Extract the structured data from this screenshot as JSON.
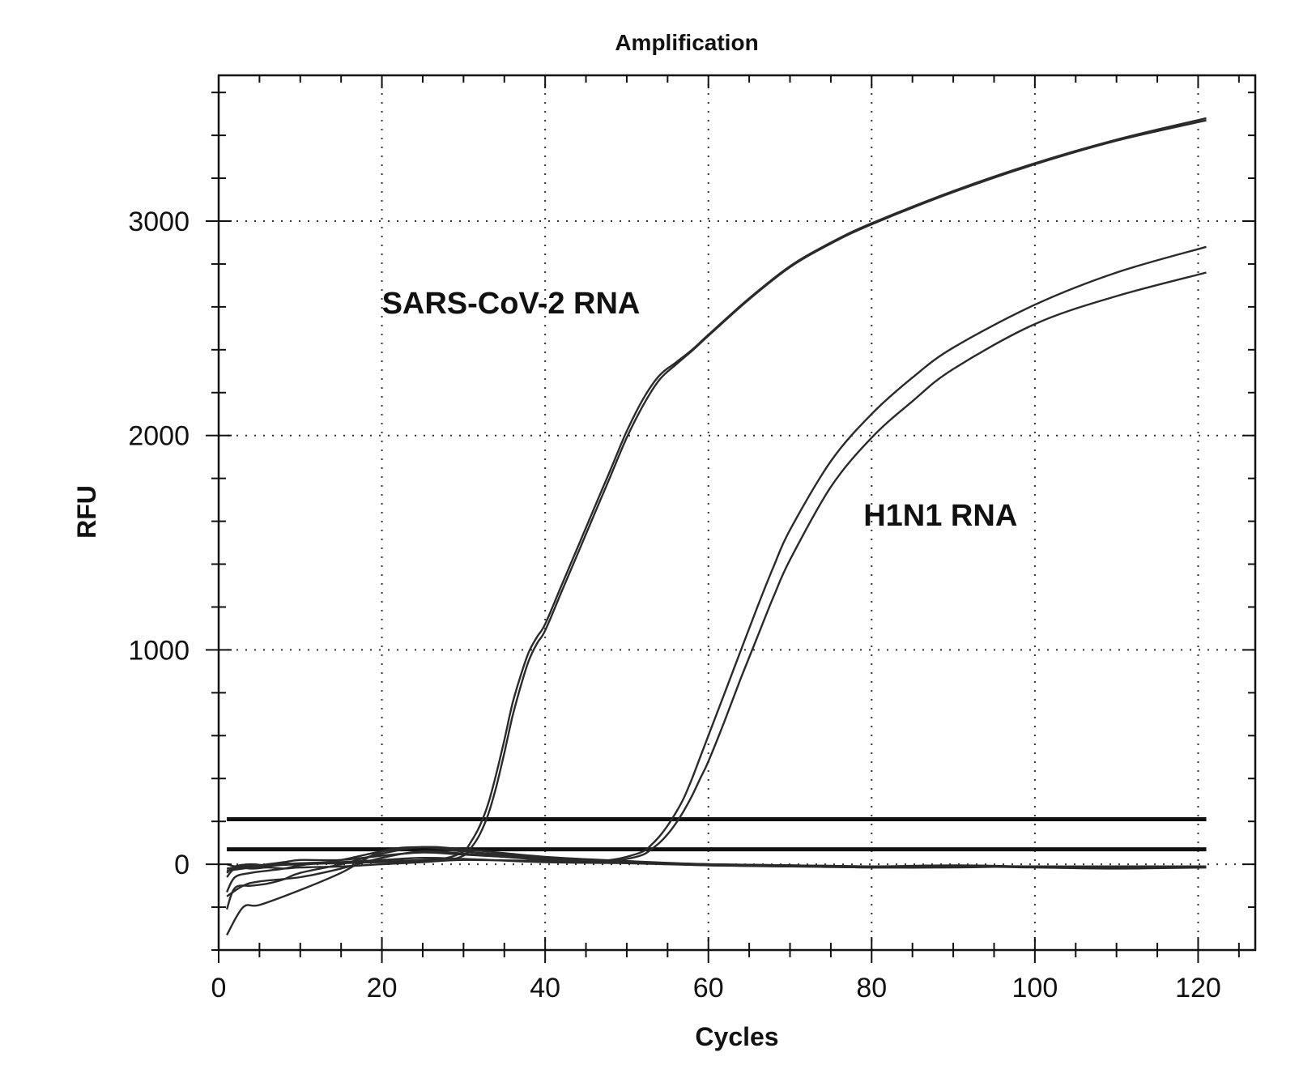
{
  "chart_data": {
    "type": "line",
    "title": "Amplification",
    "xlabel": "Cycles",
    "ylabel": "RFU",
    "xlim": [
      0,
      127
    ],
    "ylim": [
      -400,
      3680
    ],
    "x_ticks": [
      0,
      20,
      40,
      60,
      80,
      100,
      120
    ],
    "y_ticks": [
      0,
      1000,
      2000,
      3000
    ],
    "grid": true,
    "thresholds": [
      210,
      70
    ],
    "annotations": [
      {
        "text": "SARS-CoV-2 RNA",
        "x": 20,
        "y": 2570
      },
      {
        "text": "H1N1 RNA",
        "x": 79,
        "y": 1580
      }
    ],
    "series": [
      {
        "x": [
          1,
          3,
          5,
          10,
          15,
          20,
          25,
          28,
          30,
          31,
          32,
          33,
          34,
          35,
          36,
          37,
          38,
          39,
          40,
          42,
          44,
          46,
          48,
          50,
          52,
          54,
          56,
          58,
          60,
          65,
          70,
          75,
          80,
          90,
          100,
          110,
          121
        ],
        "y": [
          -20,
          -10,
          -5,
          5,
          10,
          15,
          20,
          30,
          60,
          110,
          180,
          280,
          420,
          580,
          750,
          880,
          990,
          1060,
          1120,
          1300,
          1480,
          1660,
          1840,
          2020,
          2170,
          2280,
          2340,
          2400,
          2470,
          2640,
          2790,
          2900,
          2990,
          3140,
          3270,
          3380,
          3480
        ]
      },
      {
        "x": [
          1,
          3,
          5,
          10,
          15,
          20,
          25,
          28,
          30,
          31,
          32,
          33,
          34,
          35,
          36,
          37,
          38,
          39,
          40,
          42,
          44,
          46,
          48,
          50,
          52,
          54,
          56,
          58,
          60,
          65,
          70,
          75,
          80,
          90,
          100,
          110,
          121
        ],
        "y": [
          -30,
          -20,
          -10,
          0,
          5,
          10,
          15,
          20,
          40,
          80,
          140,
          230,
          360,
          520,
          690,
          830,
          950,
          1030,
          1090,
          1270,
          1450,
          1630,
          1810,
          1990,
          2140,
          2260,
          2330,
          2395,
          2465,
          2635,
          2785,
          2895,
          2985,
          3135,
          3265,
          3375,
          3470
        ]
      },
      {
        "x": [
          1,
          3,
          5,
          10,
          15,
          20,
          25,
          30,
          40,
          45,
          48,
          50,
          52,
          53,
          54,
          55,
          56,
          57,
          58,
          59,
          60,
          62,
          64,
          66,
          68,
          70,
          75,
          80,
          85,
          90,
          100,
          110,
          121
        ],
        "y": [
          -150,
          -100,
          -80,
          -60,
          -20,
          30,
          60,
          50,
          20,
          15,
          20,
          35,
          60,
          90,
          130,
          180,
          240,
          310,
          400,
          500,
          600,
          800,
          1000,
          1200,
          1390,
          1560,
          1880,
          2100,
          2270,
          2410,
          2610,
          2760,
          2880
        ]
      },
      {
        "x": [
          1,
          3,
          5,
          10,
          15,
          20,
          25,
          30,
          40,
          45,
          48,
          50,
          52,
          53,
          54,
          55,
          56,
          57,
          58,
          59,
          60,
          62,
          64,
          66,
          68,
          70,
          75,
          80,
          85,
          90,
          100,
          110,
          121
        ],
        "y": [
          -330,
          -200,
          -190,
          -120,
          -40,
          60,
          80,
          60,
          25,
          15,
          15,
          25,
          45,
          70,
          100,
          140,
          190,
          250,
          320,
          400,
          480,
          670,
          870,
          1060,
          1250,
          1420,
          1760,
          1990,
          2160,
          2310,
          2520,
          2650,
          2760
        ]
      },
      {
        "x": [
          1,
          2,
          4,
          6,
          8,
          10,
          15,
          20,
          25,
          30,
          40,
          50,
          60,
          70,
          80,
          90,
          100,
          110,
          121
        ],
        "y": [
          -130,
          -60,
          -40,
          -30,
          -20,
          -5,
          20,
          60,
          80,
          60,
          30,
          10,
          0,
          -5,
          -10,
          -10,
          -10,
          -10,
          -10
        ]
      },
      {
        "x": [
          1,
          2,
          4,
          6,
          8,
          10,
          15,
          20,
          25,
          30,
          40,
          50,
          60,
          70,
          80,
          90,
          100,
          110,
          121
        ],
        "y": [
          -60,
          -20,
          -10,
          0,
          10,
          20,
          20,
          40,
          55,
          45,
          25,
          10,
          -5,
          -10,
          -15,
          -15,
          -10,
          -15,
          -15
        ]
      },
      {
        "x": [
          1,
          2,
          4,
          6,
          8,
          10,
          15,
          20,
          25,
          30,
          40,
          50,
          60,
          70,
          80,
          90,
          100,
          110,
          121
        ],
        "y": [
          -40,
          -10,
          0,
          -5,
          5,
          0,
          10,
          20,
          30,
          25,
          10,
          5,
          -5,
          -10,
          -10,
          -5,
          -10,
          -10,
          -10
        ]
      },
      {
        "x": [
          1,
          2,
          4,
          6,
          8,
          10,
          15,
          20,
          25,
          30,
          40,
          50,
          60,
          70,
          80,
          90,
          100,
          110,
          121
        ],
        "y": [
          -210,
          -110,
          -100,
          -90,
          -70,
          -40,
          0,
          50,
          80,
          70,
          35,
          15,
          0,
          -5,
          -10,
          -10,
          -10,
          -15,
          -10
        ]
      },
      {
        "x": [
          1,
          2,
          4,
          6,
          8,
          10,
          15,
          20,
          25,
          30,
          40,
          50,
          60,
          70,
          80,
          90,
          100,
          110,
          121
        ],
        "y": [
          0,
          -10,
          -20,
          -15,
          -20,
          -15,
          -10,
          0,
          10,
          20,
          15,
          10,
          0,
          -5,
          -15,
          -10,
          -15,
          -20,
          -15
        ]
      }
    ]
  }
}
